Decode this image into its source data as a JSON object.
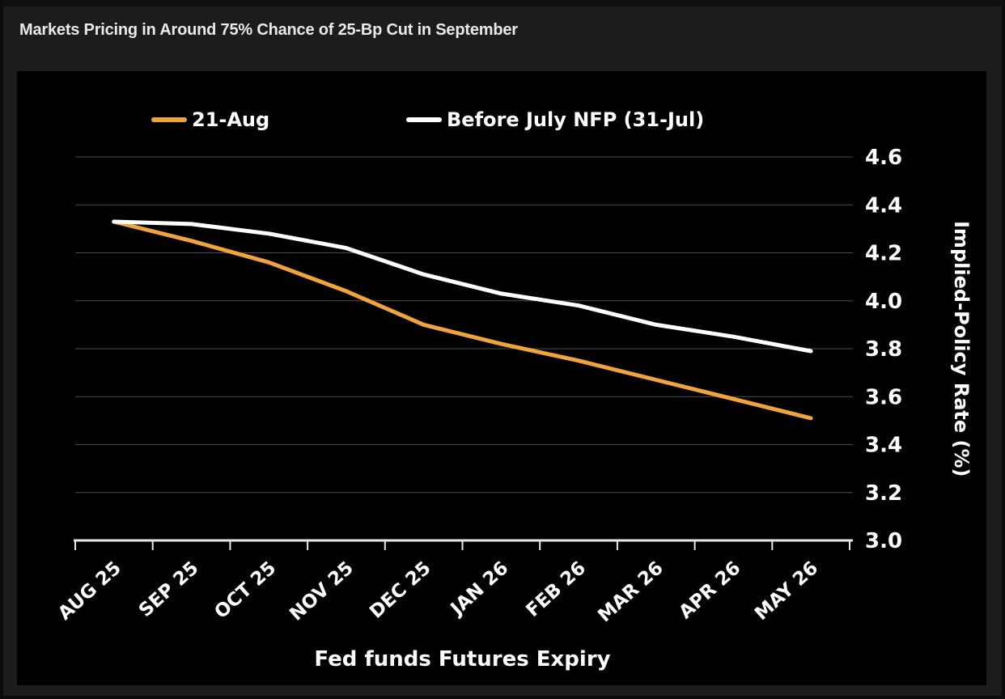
{
  "page": {
    "title": "Markets Pricing in Around 75% Chance of 25-Bp Cut in September"
  },
  "chart_data": {
    "type": "line",
    "title": "Markets Pricing in Around 75% Chance of 25-Bp Cut in September",
    "categories": [
      "AUG 25",
      "SEP 25",
      "OCT 25",
      "NOV 25",
      "DEC 25",
      "JAN 26",
      "FEB 26",
      "MAR 26",
      "APR 26",
      "MAY 26"
    ],
    "series": [
      {
        "name": "21-Aug",
        "color": "#F2A43C",
        "values": [
          4.33,
          4.25,
          4.16,
          4.04,
          3.9,
          3.82,
          3.75,
          3.67,
          3.59,
          3.51
        ]
      },
      {
        "name": "Before July NFP (31-Jul)",
        "color": "#FFFFFF",
        "values": [
          4.33,
          4.32,
          4.28,
          4.22,
          4.11,
          4.03,
          3.98,
          3.9,
          3.85,
          3.79
        ]
      }
    ],
    "xlabel": "Fed funds Futures Expiry",
    "ylabel": "Implied-Policy Rate (%)",
    "ylim": [
      3.0,
      4.6
    ],
    "ytick_step": 0.2,
    "ytick_labels": [
      "4.6",
      "4.4",
      "4.2",
      "4.0",
      "3.8",
      "3.6",
      "3.4",
      "3.2",
      "3.0"
    ],
    "grid": "horizontal",
    "legend_position": "top-inside"
  },
  "style": {
    "page_background": "#1c1c1c",
    "panel_background": "#000000",
    "grid_color": "#4d4d4d",
    "axis_color": "#e8e8e8",
    "text_color": "#ffffff"
  }
}
